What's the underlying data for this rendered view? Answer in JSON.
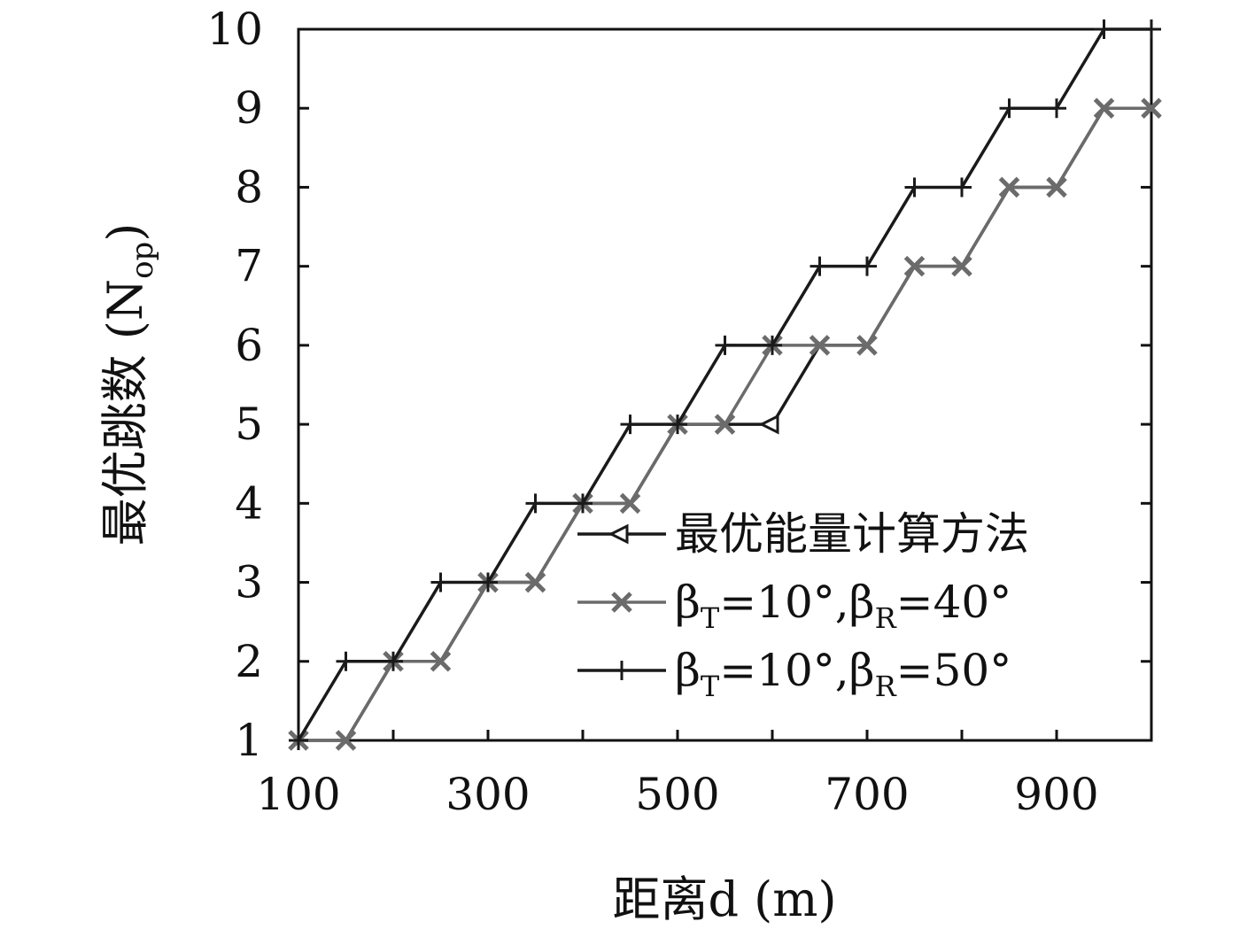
{
  "chart_data": {
    "type": "line",
    "xlabel": "距离d (m)",
    "ylabel": "最优跳数 (N",
    "ylabel_sub": "op",
    "ylabel_end": ")",
    "xlim": [
      100,
      1000
    ],
    "ylim": [
      1,
      10
    ],
    "xticks": [
      100,
      300,
      500,
      700,
      900
    ],
    "yticks": [
      1,
      2,
      3,
      4,
      5,
      6,
      7,
      8,
      9,
      10
    ],
    "grid": false,
    "legend_position": "lower-right",
    "series": [
      {
        "name": "最优能量计算方法",
        "legend_parts": [
          {
            "t": "最优能量计算方法"
          }
        ],
        "color": "#1a1a1a",
        "marker": "triangle-left",
        "x": [
          100,
          150,
          200,
          250,
          300,
          350,
          400,
          450,
          500,
          550,
          600,
          650,
          700,
          750,
          800,
          850,
          900,
          950,
          1000
        ],
        "y": [
          1,
          1,
          2,
          2,
          3,
          3,
          4,
          4,
          5,
          5,
          5,
          6,
          6,
          7,
          7,
          8,
          8,
          9,
          9
        ]
      },
      {
        "name": "βT=10°,βR=40°",
        "legend_parts": [
          {
            "t": "β"
          },
          {
            "t": "T",
            "sub": true
          },
          {
            "t": "=10°,β"
          },
          {
            "t": "R",
            "sub": true
          },
          {
            "t": "=40°"
          }
        ],
        "color": "#6b6b6b",
        "marker": "x",
        "x": [
          100,
          150,
          200,
          250,
          300,
          350,
          400,
          450,
          500,
          550,
          600,
          650,
          700,
          750,
          800,
          850,
          900,
          950,
          1000
        ],
        "y": [
          1,
          1,
          2,
          2,
          3,
          3,
          4,
          4,
          5,
          5,
          6,
          6,
          6,
          7,
          7,
          8,
          8,
          9,
          9
        ]
      },
      {
        "name": "βT=10°,βR=50°",
        "legend_parts": [
          {
            "t": "β"
          },
          {
            "t": "T",
            "sub": true
          },
          {
            "t": "=10°,β"
          },
          {
            "t": "R",
            "sub": true
          },
          {
            "t": "=50°"
          }
        ],
        "color": "#1a1a1a",
        "marker": "plus",
        "x": [
          100,
          150,
          200,
          250,
          300,
          350,
          400,
          450,
          500,
          550,
          600,
          650,
          700,
          750,
          800,
          850,
          900,
          950,
          1000
        ],
        "y": [
          1,
          2,
          2,
          3,
          3,
          4,
          4,
          5,
          5,
          6,
          6,
          7,
          7,
          8,
          8,
          9,
          9,
          10,
          10
        ]
      }
    ]
  }
}
